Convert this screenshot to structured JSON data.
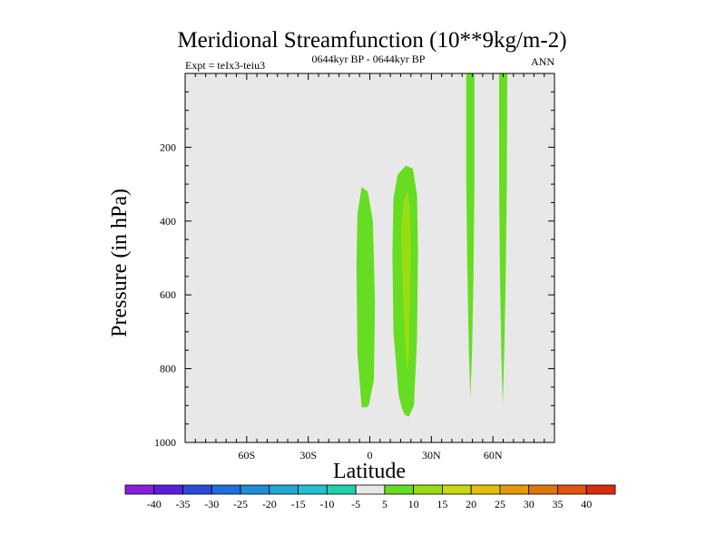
{
  "chart_data": {
    "type": "contour",
    "title": "Meridional Streamfunction (10**9kg/m-2)",
    "subtitle": "0644kyr BP - 0644kyr BP",
    "left_note": "Expt = teIx3-teiu3",
    "right_note": "ANN",
    "xlabel": "Latitude",
    "ylabel": "Pressure (in hPa)",
    "xlim": [
      -90,
      90
    ],
    "ylim": [
      1000,
      0
    ],
    "x_ticks": [
      {
        "value": -60,
        "label": "60S"
      },
      {
        "value": -30,
        "label": "30S"
      },
      {
        "value": 0,
        "label": "0"
      },
      {
        "value": 30,
        "label": "30N"
      },
      {
        "value": 60,
        "label": "60N"
      }
    ],
    "y_ticks": [
      {
        "value": 200,
        "label": "200"
      },
      {
        "value": 400,
        "label": "400"
      },
      {
        "value": 600,
        "label": "600"
      },
      {
        "value": 800,
        "label": "800"
      },
      {
        "value": 1000,
        "label": "1000"
      }
    ],
    "background_level": "-5 to 5",
    "regions": [
      {
        "name": "equatorial-cell-5-10",
        "level": "5 to 10",
        "color": "#66dd22",
        "polygon": [
          [
            -4,
            905
          ],
          [
            -6,
            760
          ],
          [
            -6.5,
            520
          ],
          [
            -6,
            380
          ],
          [
            -4,
            308
          ],
          [
            -1,
            320
          ],
          [
            1.5,
            400
          ],
          [
            2.5,
            620
          ],
          [
            2,
            830
          ],
          [
            -0.5,
            900
          ],
          [
            -1.5,
            905
          ]
        ]
      },
      {
        "name": "tropical-cell-5-10",
        "level": "5 to 10",
        "color": "#66dd22",
        "polygon": [
          [
            14,
            870
          ],
          [
            11.5,
            700
          ],
          [
            11,
            490
          ],
          [
            11.5,
            340
          ],
          [
            13.5,
            275
          ],
          [
            17.5,
            250
          ],
          [
            21,
            258
          ],
          [
            23,
            330
          ],
          [
            23.5,
            480
          ],
          [
            23,
            720
          ],
          [
            21.5,
            900
          ],
          [
            19,
            930
          ],
          [
            17,
            925
          ],
          [
            15.5,
            905
          ]
        ]
      },
      {
        "name": "tropical-cell-10-15",
        "level": "10 to 15",
        "color": "#99dd11",
        "polygon": [
          [
            15.5,
            470
          ],
          [
            15.5,
            400
          ],
          [
            16.5,
            345
          ],
          [
            18.5,
            320
          ],
          [
            19.5,
            360
          ],
          [
            20,
            480
          ],
          [
            19.5,
            620
          ],
          [
            19,
            770
          ],
          [
            18,
            800
          ],
          [
            17,
            700
          ],
          [
            16,
            560
          ]
        ]
      },
      {
        "name": "subpolar-band-1-5-10",
        "level": "5 to 10",
        "color": "#66dd22",
        "polygon": [
          [
            47,
            0
          ],
          [
            51,
            0
          ],
          [
            51,
            300
          ],
          [
            50.5,
            560
          ],
          [
            49.8,
            760
          ],
          [
            49,
            880
          ],
          [
            48.3,
            760
          ],
          [
            47.5,
            520
          ],
          [
            47,
            300
          ]
        ]
      },
      {
        "name": "subpolar-band-2-5-10",
        "level": "5 to 10",
        "color": "#66dd22",
        "polygon": [
          [
            63,
            0
          ],
          [
            67,
            0
          ],
          [
            66.8,
            300
          ],
          [
            66.2,
            560
          ],
          [
            65.5,
            760
          ],
          [
            64.8,
            900
          ],
          [
            64.1,
            760
          ],
          [
            63.4,
            540
          ],
          [
            63,
            300
          ]
        ]
      }
    ],
    "colorbar": {
      "labels": [
        "-40",
        "-35",
        "-30",
        "-25",
        "-20",
        "-15",
        "-10",
        "-5",
        "5",
        "10",
        "15",
        "20",
        "25",
        "30",
        "35",
        "40"
      ],
      "colors": [
        "#8a1ee0",
        "#5a1ee0",
        "#2c4bdc",
        "#1e6ede",
        "#1e8ed6",
        "#1ea8d8",
        "#1ec0d2",
        "#1ed2ae",
        "#e8e8e8",
        "#66dd22",
        "#99dd11",
        "#c6d80e",
        "#e2c00a",
        "#e59a0c",
        "#e2760e",
        "#e05410",
        "#d82c0c"
      ]
    }
  }
}
